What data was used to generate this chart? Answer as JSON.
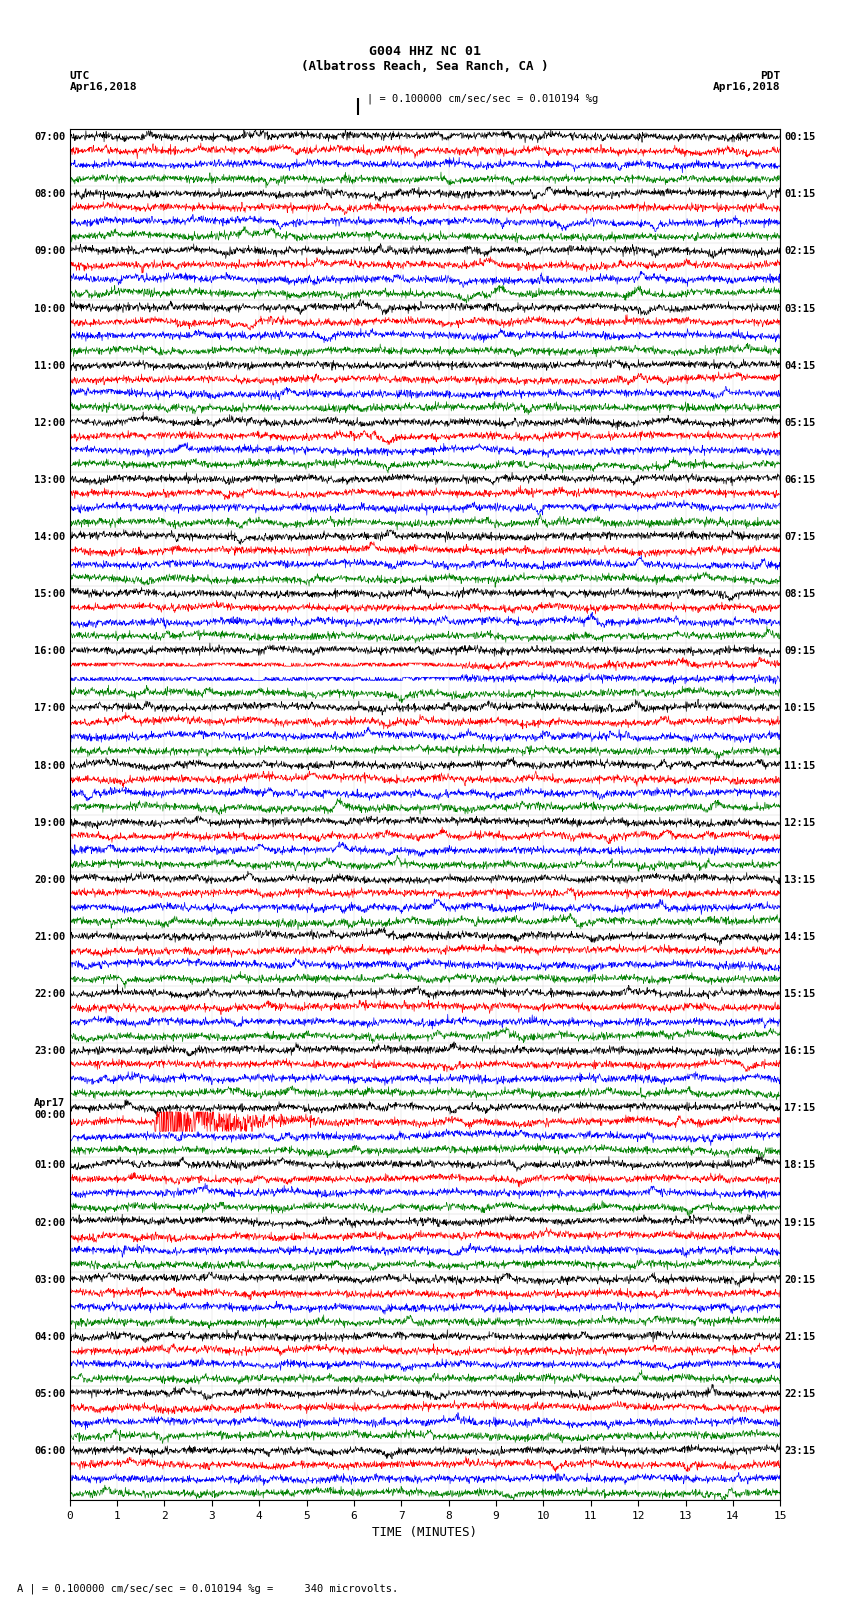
{
  "title_line1": "G004 HHZ NC 01",
  "title_line2": "(Albatross Reach, Sea Ranch, CA )",
  "left_header": "UTC",
  "right_header": "PDT",
  "left_date": "Apr16,2018",
  "right_date": "Apr16,2018",
  "scale_label": "| = 0.100000 cm/sec/sec = 0.010194 %g",
  "footer_label": "A | = 0.100000 cm/sec/sec = 0.010194 %g =     340 microvolts.",
  "xlabel": "TIME (MINUTES)",
  "x_min": 0,
  "x_max": 15,
  "num_hours": 24,
  "traces_per_hour": 4,
  "row_colors": [
    "black",
    "red",
    "blue",
    "green"
  ],
  "trace_amplitude": 0.38,
  "noise_amplitude": 0.12,
  "background_color": "white",
  "trace_linewidth": 0.45,
  "utc_times": [
    "07:00",
    "08:00",
    "09:00",
    "10:00",
    "11:00",
    "12:00",
    "13:00",
    "14:00",
    "15:00",
    "16:00",
    "17:00",
    "18:00",
    "19:00",
    "20:00",
    "21:00",
    "22:00",
    "23:00",
    "Apr17\n00:00",
    "01:00",
    "02:00",
    "03:00",
    "04:00",
    "05:00",
    "06:00"
  ],
  "pdt_times": [
    "00:15",
    "01:15",
    "02:15",
    "03:15",
    "04:15",
    "05:15",
    "06:15",
    "07:15",
    "08:15",
    "09:15",
    "10:15",
    "11:15",
    "12:15",
    "13:15",
    "14:15",
    "15:15",
    "16:15",
    "17:15",
    "18:15",
    "19:15",
    "20:15",
    "21:15",
    "22:15",
    "23:15"
  ],
  "earthquake_hour": 17,
  "earthquake_color_idx": 1,
  "blank_region_hour": 9,
  "fig_width": 8.5,
  "fig_height": 16.13
}
